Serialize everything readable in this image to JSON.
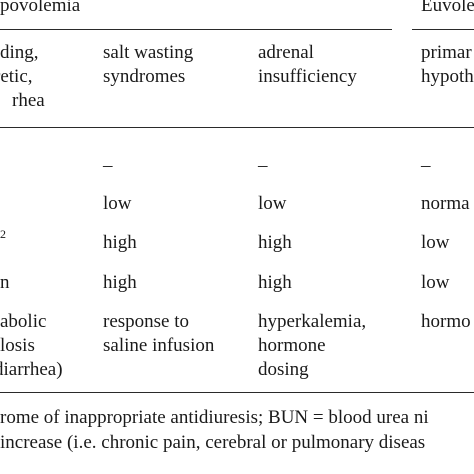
{
  "table": {
    "group_headers": {
      "hypovolemia": "povolemia",
      "euvolemia": "Euvole"
    },
    "column_headers": {
      "col1": [
        "ding,",
        "retic,",
        "rhea"
      ],
      "col2": [
        "salt wasting",
        "syndromes"
      ],
      "col3": [
        "adrenal",
        "insufficiency"
      ],
      "col4": [
        "primar",
        "hypoth"
      ]
    },
    "rows": [
      {
        "label": "",
        "cells": [
          "–",
          "–",
          "–"
        ]
      },
      {
        "label": "",
        "cells": [
          "low",
          "low",
          "norma"
        ]
      },
      {
        "label": "2",
        "cells": [
          "high",
          "high",
          "low"
        ]
      },
      {
        "label": "n",
        "cells": [
          "high",
          "high",
          "low"
        ]
      },
      {
        "label": [
          "abolic",
          "losis",
          "diarrhea)"
        ],
        "cells": [
          [
            "response to",
            "saline infusion"
          ],
          [
            "hyperkalemia,",
            "hormone",
            "dosing"
          ],
          [
            "hormo"
          ]
        ]
      }
    ]
  },
  "footnotes": [
    "rome of inappropriate antidiuresis; BUN = blood urea ni",
    " increase (i.e. chronic pain, cerebral or pulmonary diseas"
  ]
}
